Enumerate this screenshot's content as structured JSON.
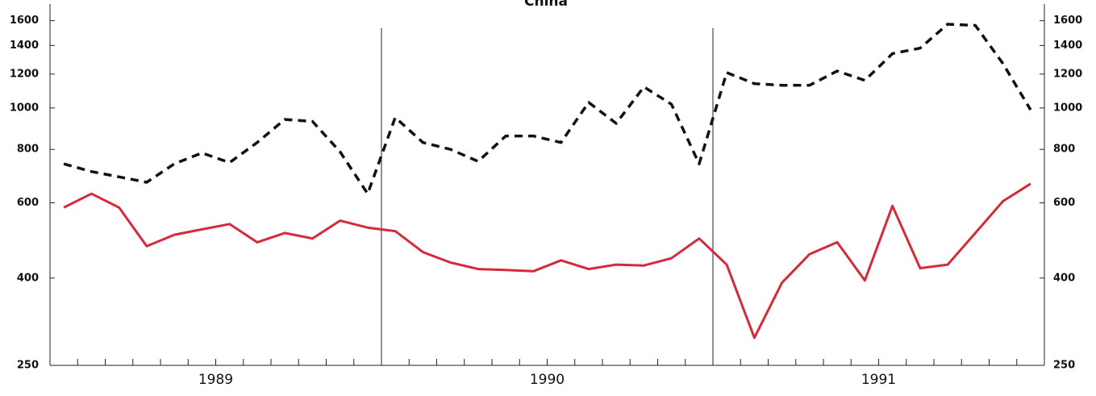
{
  "chart_data": {
    "type": "line",
    "title": "China",
    "categories": [
      null,
      null,
      null,
      null,
      null,
      null,
      null,
      null,
      null,
      null,
      null,
      null,
      null,
      null,
      null,
      null,
      null,
      null,
      null,
      null,
      null,
      null,
      null,
      null,
      null,
      null,
      null,
      null,
      null,
      null,
      null,
      null,
      null,
      null,
      null,
      null
    ],
    "year_labels": [
      "1989",
      "1990",
      "1991"
    ],
    "series": [
      {
        "color": "#111111",
        "dashed": true,
        "values": [
          740,
          710,
          690,
          670,
          740,
          785,
          745,
          830,
          940,
          930,
          790,
          630,
          950,
          830,
          800,
          750,
          860,
          860,
          830,
          1030,
          920,
          1120,
          1020,
          740,
          1210,
          1140,
          1130,
          1130,
          1220,
          1160,
          1340,
          1380,
          1570,
          1560,
          1270,
          990
        ]
      },
      {
        "color": "#d42a3a",
        "dashed": false,
        "values": [
          585,
          630,
          585,
          475,
          505,
          520,
          535,
          485,
          510,
          495,
          545,
          525,
          515,
          460,
          435,
          420,
          418,
          415,
          440,
          420,
          430,
          428,
          445,
          495,
          430,
          290,
          390,
          455,
          485,
          395,
          590,
          422,
          430,
          510,
          605,
          665
        ]
      }
    ],
    "log_scale": true,
    "ylim": [
      250,
      1750
    ],
    "yticks": [
      250,
      400,
      600,
      800,
      1000,
      1200,
      1400,
      1600
    ],
    "y2lim": [
      250,
      1750
    ],
    "y2ticks": [
      250,
      400,
      600,
      800,
      1000,
      1200,
      1400,
      1600
    ]
  }
}
